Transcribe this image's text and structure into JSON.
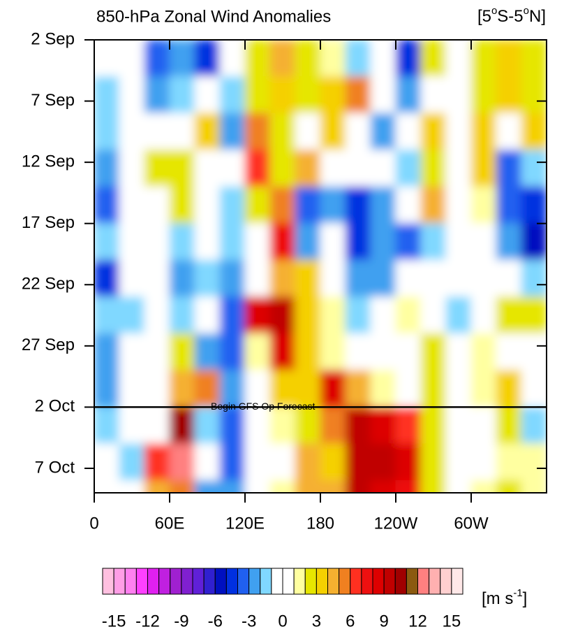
{
  "chart_data": {
    "type": "heatmap",
    "title": "850-hPa Zonal Wind Anomalies",
    "region": [
      "[5",
      "o",
      "S-5",
      "o",
      "N]"
    ],
    "xlim": [
      0,
      360
    ],
    "xticks": [
      0,
      {
        "value": 60,
        "label": "60E"
      },
      {
        "value": 120,
        "label": "120E"
      },
      {
        "value": 180,
        "label": "180"
      },
      {
        "value": 240,
        "label": "120W"
      },
      {
        "value": 300,
        "label": "60W"
      }
    ],
    "ylim": [
      "09-02",
      "10-09"
    ],
    "yticks": [
      {
        "value": "09-02",
        "label": "2 Sep"
      },
      {
        "value": "09-07",
        "label": "7 Sep"
      },
      {
        "value": "09-12",
        "label": "12 Sep"
      },
      {
        "value": "09-17",
        "label": "17 Sep"
      },
      {
        "value": "09-22",
        "label": "22 Sep"
      },
      {
        "value": "09-27",
        "label": "27 Sep"
      },
      {
        "value": "10-02",
        "label": "2 Oct"
      },
      {
        "value": "10-07",
        "label": "7 Oct"
      }
    ],
    "x": [
      0,
      20,
      40,
      60,
      80,
      100,
      120,
      140,
      160,
      180,
      200,
      220,
      240,
      260,
      280,
      300,
      320,
      340,
      360
    ],
    "y": [
      "09-02",
      "09-05",
      "09-08",
      "09-11",
      "09-14",
      "09-17",
      "09-20",
      "09-23",
      "09-26",
      "09-29",
      "10-02",
      "10-05",
      "10-08",
      "10-11"
    ],
    "values": [
      [
        -1,
        0,
        -4,
        -3,
        -5,
        0,
        2,
        4,
        2,
        1,
        -2,
        0,
        -5,
        2,
        0,
        2,
        3,
        2
      ],
      [
        -2,
        -1,
        -3,
        -2,
        -1,
        -2,
        2,
        3,
        2,
        3,
        5,
        -1,
        -3,
        0,
        -1,
        2,
        3,
        2
      ],
      [
        -2,
        0,
        0,
        -1,
        3,
        -3,
        5,
        2,
        0,
        3,
        -1,
        -3,
        -1,
        3,
        -1,
        3,
        -1,
        3
      ],
      [
        -3,
        0,
        2,
        2,
        0,
        -1,
        6,
        2,
        4,
        0,
        0,
        -1,
        -2,
        2,
        0,
        3,
        -4,
        -2
      ],
      [
        -4,
        0,
        0,
        2,
        0,
        -2,
        2,
        5,
        -4,
        -3,
        -5,
        -3,
        -1,
        4,
        -1,
        1,
        -4,
        -5
      ],
      [
        -2,
        0,
        0,
        -2,
        -1,
        -2,
        0,
        7,
        -3,
        -1,
        -5,
        -3,
        -4,
        -2,
        -1,
        0,
        -3,
        -6
      ],
      [
        -5,
        -1,
        -1,
        -3,
        -2,
        -3,
        0,
        4,
        3,
        -1,
        -3,
        -3,
        -1,
        -1,
        -1,
        0,
        -1,
        -2
      ],
      [
        -2,
        -2,
        0,
        -2,
        0,
        -4,
        8,
        9,
        3,
        1,
        -2,
        -1,
        1,
        0,
        -2,
        0,
        2,
        2
      ],
      [
        -3,
        -1,
        0,
        2,
        -3,
        -4,
        1,
        8,
        3,
        1,
        0,
        -1,
        0,
        2,
        -1,
        1,
        0,
        -1
      ],
      [
        -3,
        0,
        0,
        4,
        5,
        -3,
        0,
        3,
        3,
        8,
        4,
        1,
        0,
        2,
        0,
        1,
        3,
        -1
      ],
      [
        -2,
        0,
        0,
        10,
        -2,
        -4,
        -1,
        1,
        2,
        5,
        9,
        8,
        6,
        2,
        -1,
        0,
        2,
        -2
      ],
      [
        -1,
        -2,
        6,
        12,
        -1,
        -4,
        -1,
        0,
        4,
        3,
        9,
        9,
        8,
        2,
        0,
        0,
        1,
        1
      ],
      [
        0,
        -1,
        4,
        5,
        -3,
        -3,
        0,
        1,
        4,
        4,
        9,
        8,
        7,
        2,
        0,
        1,
        2,
        1
      ]
    ],
    "annotation": {
      "text": "Begin GFS Op Forecast",
      "date": "10-02"
    },
    "colorbar_lim": [
      -16,
      16
    ],
    "colorbar_ticks": [
      -15,
      -12,
      -9,
      -6,
      -3,
      0,
      3,
      6,
      9,
      12,
      15
    ],
    "colors": [
      "#ffc0e0",
      "#ff9ee6",
      "#ff80f0",
      "#ff40ff",
      "#e020f0",
      "#c020e0",
      "#a020d0",
      "#8020d0",
      "#6020d8",
      "#3020d0",
      "#0010c0",
      "#0030e0",
      "#2060f0",
      "#40a0f0",
      "#80d8ff",
      "#ffffff",
      "#ffffff",
      "#ffffa0",
      "#e6e600",
      "#f5d000",
      "#f5b030",
      "#f08020",
      "#ff3020",
      "#ee1010",
      "#dd0000",
      "#c00000",
      "#a00000",
      "#8b5a10",
      "#ff8080",
      "#ffb0b0",
      "#ffd0d0",
      "#ffe8e8"
    ],
    "units": [
      "[m s",
      "-1",
      "]"
    ]
  }
}
